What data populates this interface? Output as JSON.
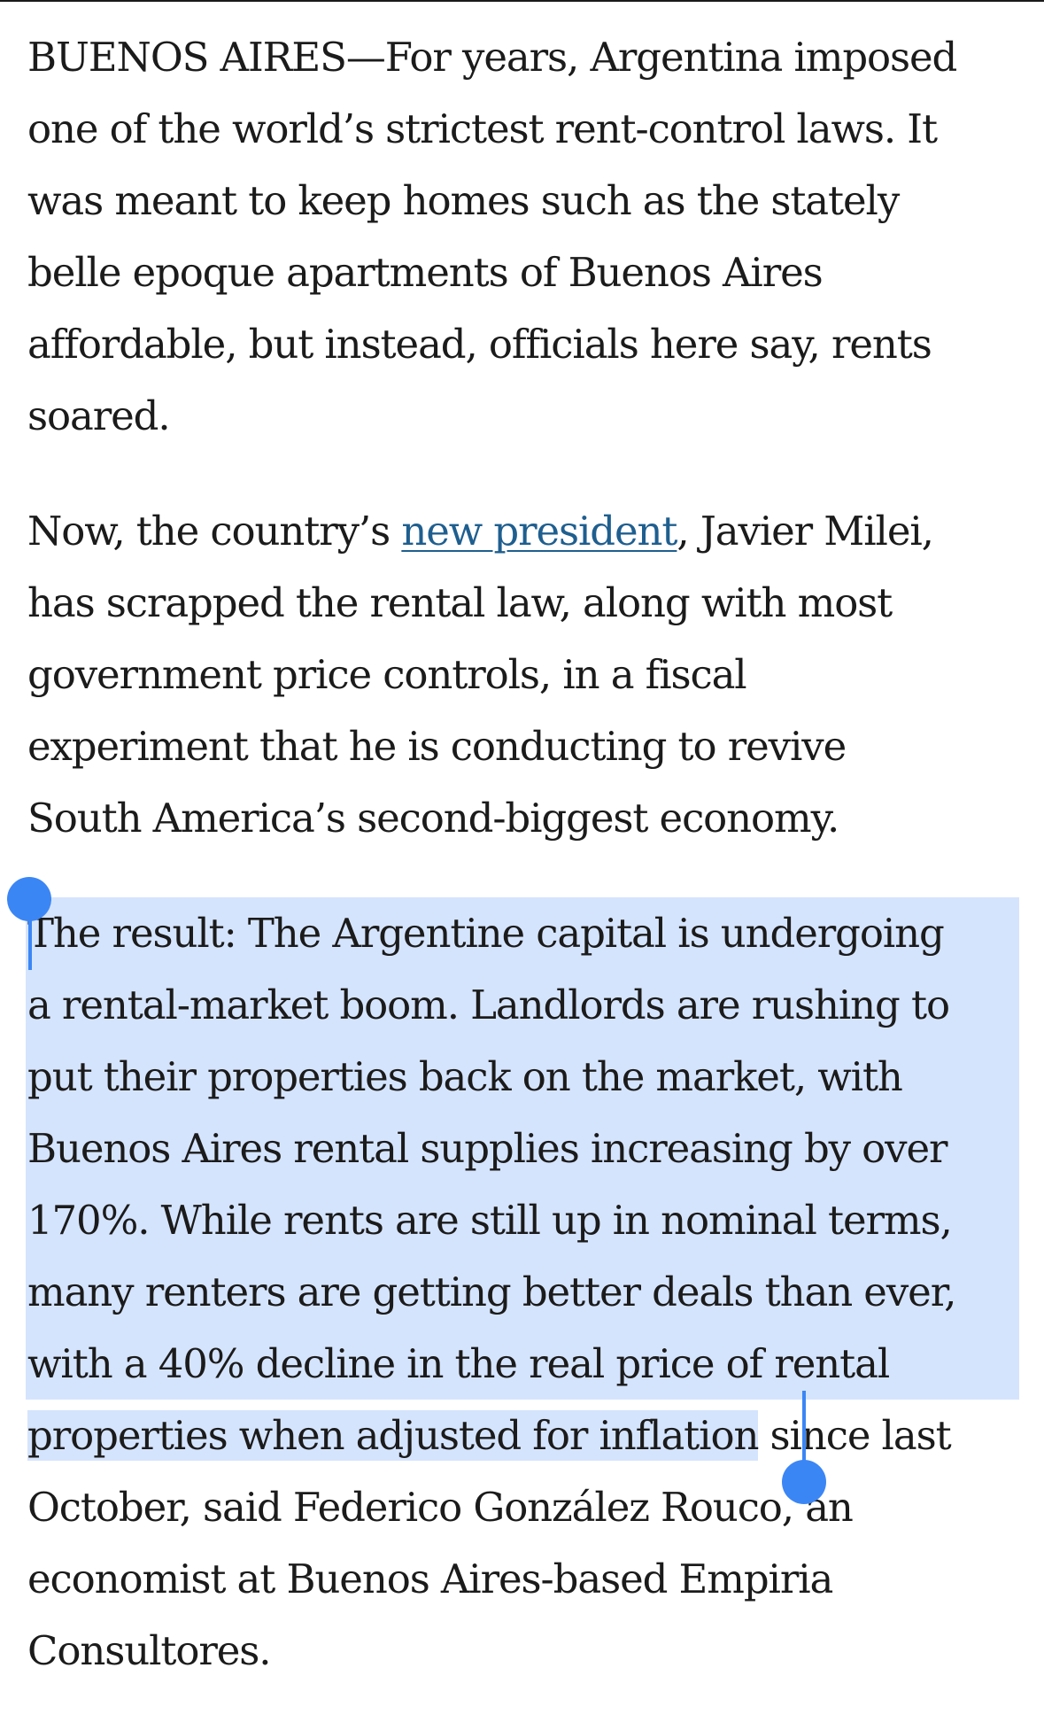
{
  "article": {
    "paragraph1": [
      "BUENOS AIRES—For years, Argentina imposed",
      "one of the world’s strictest rent-control laws. It",
      "was meant to keep homes such as the stately",
      "belle epoque apartments of Buenos Aires",
      "affordable, but instead, officials here say, rents",
      "soared."
    ],
    "paragraph2": {
      "line1_before": "Now, the country’s ",
      "link_text": "new president",
      "line1_after": ", Javier Milei,",
      "lines": [
        "has scrapped the rental law, along with most",
        "government price controls, in a fiscal",
        "experiment that he is conducting to revive",
        "South America’s second-biggest economy."
      ]
    },
    "paragraph3": {
      "selected_lines": [
        "The result: The Argentine capital is undergoing",
        "a rental-market boom. Landlords are rushing to",
        "put their properties back on the market, with",
        "Buenos Aires rental supplies increasing by over",
        "170%. While rents are still up in nominal terms,",
        "many renters are getting better deals than ever,",
        "with a 40% decline in the real price of rental"
      ],
      "last_selected_fragment": "properties when adjusted for inflation",
      "after_selection": " since last",
      "remaining_lines": [
        "October, said Federico González Rouco, an",
        "economist at Buenos Aires-based Empiria",
        "Consultores."
      ]
    }
  },
  "colors": {
    "text": "#1b1b1b",
    "link": "#1f5f8f",
    "selection": "#d6e4fd",
    "handle": "#3b86f5"
  }
}
